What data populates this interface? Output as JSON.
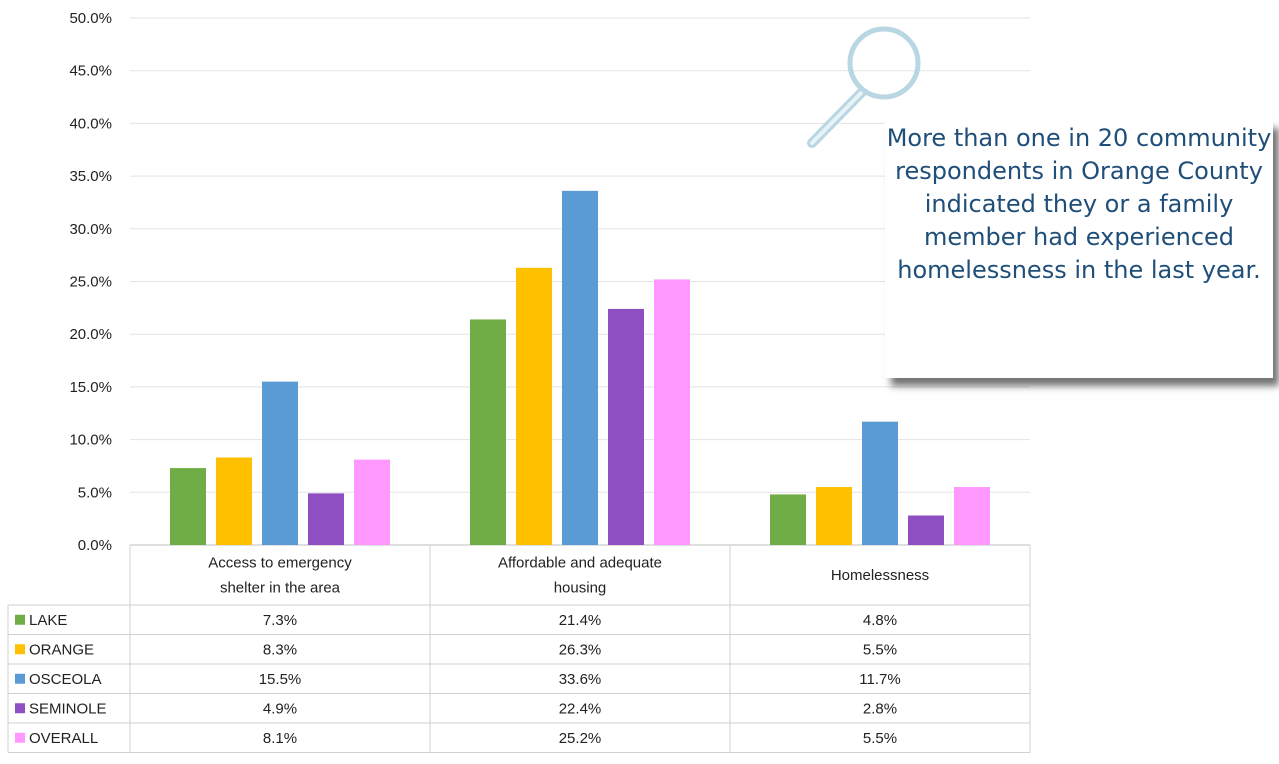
{
  "chart_data": {
    "type": "bar",
    "categories": [
      "Access to emergency shelter in the area",
      "Affordable and adequate housing",
      "Homelessness"
    ],
    "category_lines": [
      [
        "Access to emergency",
        "shelter in the area"
      ],
      [
        "Affordable and adequate",
        "housing"
      ],
      [
        "Homelessness"
      ]
    ],
    "series": [
      {
        "name": "LAKE",
        "color": "#70ad47",
        "values": [
          7.3,
          21.4,
          4.8
        ],
        "labels": [
          "7.3%",
          "21.4%",
          "4.8%"
        ]
      },
      {
        "name": "ORANGE",
        "color": "#ffc000",
        "values": [
          8.3,
          26.3,
          5.5
        ],
        "labels": [
          "8.3%",
          "26.3%",
          "5.5%"
        ]
      },
      {
        "name": "OSCEOLA",
        "color": "#5b9bd5",
        "values": [
          15.5,
          33.6,
          11.7
        ],
        "labels": [
          "15.5%",
          "33.6%",
          "11.7%"
        ]
      },
      {
        "name": "SEMINOLE",
        "color": "#8e4fc2",
        "values": [
          4.9,
          22.4,
          2.8
        ],
        "labels": [
          "4.9%",
          "22.4%",
          "2.8%"
        ]
      },
      {
        "name": "OVERALL",
        "color": "#ff99ff",
        "values": [
          8.1,
          25.2,
          5.5
        ],
        "labels": [
          "8.1%",
          "25.2%",
          "5.5%"
        ]
      }
    ],
    "ylim": [
      0,
      50
    ],
    "yticks": [
      "0.0%",
      "5.0%",
      "10.0%",
      "15.0%",
      "20.0%",
      "25.0%",
      "30.0%",
      "35.0%",
      "40.0%",
      "45.0%",
      "50.0%"
    ],
    "grid": true,
    "legend": "data-table"
  },
  "callout": {
    "text": "More than one in 20 community respondents in Orange County indicated they or a family member had experienced homelessness in the last year."
  },
  "icons": {
    "callout_icon": "magnifying-glass-icon"
  }
}
